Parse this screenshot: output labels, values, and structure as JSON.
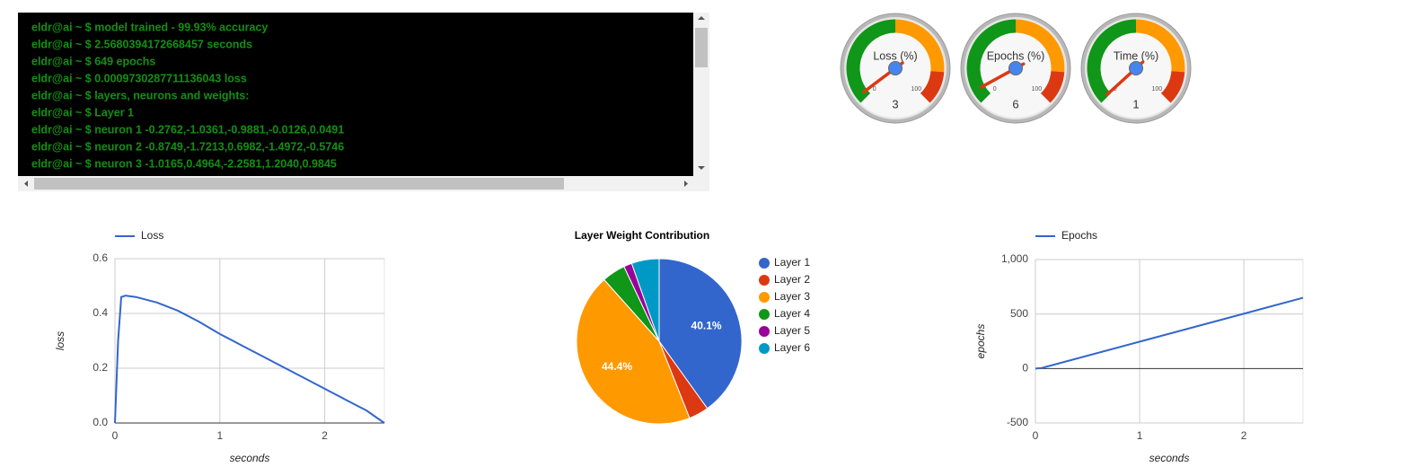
{
  "terminal": {
    "lines": [
      "eldr@ai ~ $ model trained - 99.93% accuracy",
      "eldr@ai ~ $ 2.5680394172668457 seconds",
      "eldr@ai ~ $ 649 epochs",
      "eldr@ai ~ $ 0.0009730287711136043 loss",
      "eldr@ai ~ $ layers, neurons and weights:",
      "eldr@ai ~ $ Layer 1",
      "eldr@ai ~ $ neuron 1 -0.2762,-1.0361,-0.9881,-0.0126,0.0491",
      "eldr@ai ~ $ neuron 2 -0.8749,-1.7213,0.6982,-1.4972,-0.5746",
      "eldr@ai ~ $ neuron 3 -1.0165,0.4964,-2.2581,1.2040,0.9845"
    ]
  },
  "chart_data": [
    {
      "type": "gauge",
      "title": "Loss (%)",
      "value": 3,
      "lim": [
        0,
        100
      ],
      "ticks": [
        0,
        100
      ],
      "bands": [
        {
          "from": 0,
          "to": 50,
          "color": "#109618"
        },
        {
          "from": 50,
          "to": 85,
          "color": "#ff9900"
        },
        {
          "from": 85,
          "to": 100,
          "color": "#dc3912"
        }
      ]
    },
    {
      "type": "gauge",
      "title": "Epochs (%)",
      "value": 6,
      "lim": [
        0,
        100
      ],
      "ticks": [
        0,
        100
      ],
      "bands": [
        {
          "from": 0,
          "to": 50,
          "color": "#109618"
        },
        {
          "from": 50,
          "to": 85,
          "color": "#ff9900"
        },
        {
          "from": 85,
          "to": 100,
          "color": "#dc3912"
        }
      ]
    },
    {
      "type": "gauge",
      "title": "Time (%)",
      "value": 1,
      "lim": [
        0,
        100
      ],
      "ticks": [
        0,
        100
      ],
      "bands": [
        {
          "from": 0,
          "to": 50,
          "color": "#109618"
        },
        {
          "from": 50,
          "to": 85,
          "color": "#ff9900"
        },
        {
          "from": 85,
          "to": 100,
          "color": "#dc3912"
        }
      ]
    },
    {
      "type": "line",
      "x_label": "seconds",
      "y_label": "loss",
      "x": [
        0,
        0.03,
        0.06,
        0.1,
        0.2,
        0.4,
        0.6,
        0.8,
        1.0,
        1.2,
        1.4,
        1.6,
        1.8,
        2.0,
        2.2,
        2.4,
        2.568
      ],
      "series": [
        {
          "name": "Loss",
          "color": "#3366cc",
          "values": [
            0,
            0.3,
            0.46,
            0.465,
            0.46,
            0.44,
            0.41,
            0.37,
            0.325,
            0.285,
            0.245,
            0.205,
            0.165,
            0.125,
            0.085,
            0.045,
            0
          ]
        }
      ],
      "xlim": [
        0,
        2.568
      ],
      "xticks": [
        0,
        1,
        2
      ],
      "ylim": [
        0,
        0.6
      ],
      "yticks": [
        {
          "value": 0,
          "label": "0.0"
        },
        0.2,
        0.4,
        0.6
      ],
      "grid": true
    },
    {
      "type": "pie",
      "title": "Layer Weight Contribution",
      "categories": [
        "Layer 1",
        "Layer 2",
        "Layer 3",
        "Layer 4",
        "Layer 5",
        "Layer 6"
      ],
      "values": [
        40.1,
        3.9,
        44.4,
        4.6,
        1.6,
        5.4
      ],
      "value_labels": [
        "40.1%",
        null,
        "44.4%",
        null,
        null,
        null
      ],
      "colors": [
        "#3366cc",
        "#dc3912",
        "#ff9900",
        "#109618",
        "#990099",
        "#0099c6"
      ]
    },
    {
      "type": "line",
      "x_label": "seconds",
      "y_label": "epochs",
      "x": [
        0,
        0.06,
        2.568
      ],
      "series": [
        {
          "name": "Epochs",
          "color": "#3366cc",
          "values": [
            0,
            5,
            649
          ]
        }
      ],
      "xlim": [
        0,
        2.568
      ],
      "xticks": [
        0,
        1,
        2
      ],
      "ylim": [
        -500,
        1000
      ],
      "yticks": [
        -500,
        0,
        500,
        {
          "value": 1000,
          "label": "1,000"
        }
      ],
      "grid": true
    }
  ]
}
